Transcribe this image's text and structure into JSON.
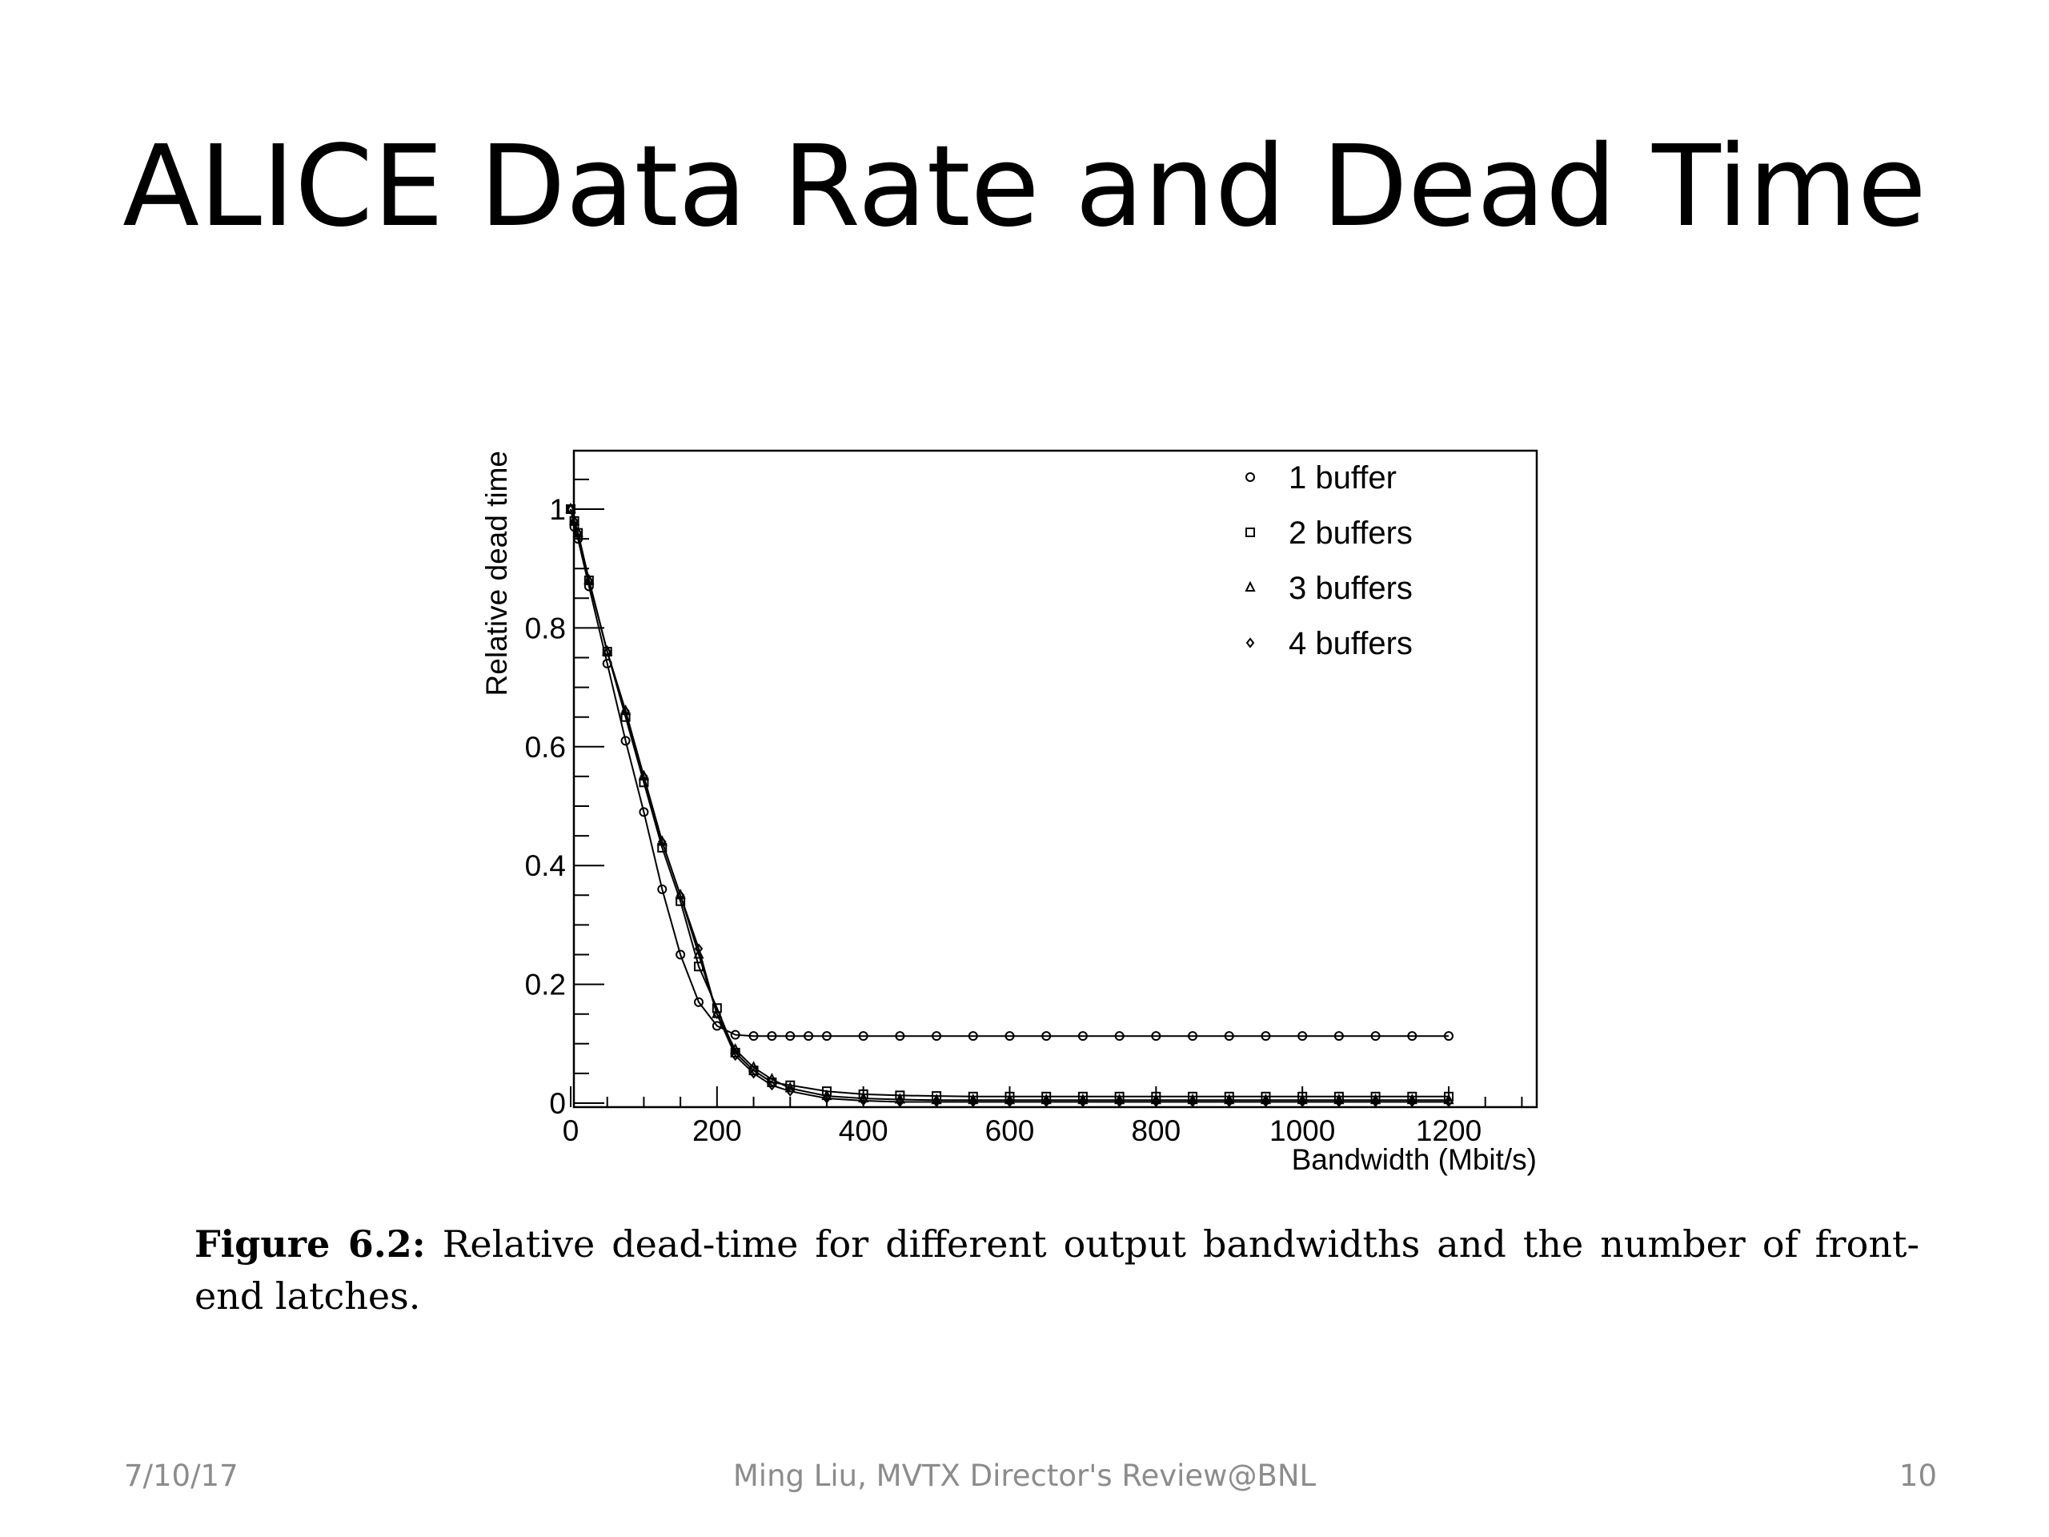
{
  "slide": {
    "title": "ALICE Data Rate and Dead Time"
  },
  "caption": {
    "label": "Figure 6.2:",
    "text": " Relative dead-time for different output bandwidths and the number of front-end latches."
  },
  "footer": {
    "date": "7/10/17",
    "center": "Ming Liu, MVTX Director's Review@BNL",
    "page": "10"
  },
  "chart_data": {
    "type": "line",
    "xlabel": "Bandwidth (Mbit/s)",
    "ylabel": "Relative dead time",
    "xlim": [
      0,
      1320
    ],
    "ylim": [
      0,
      1.1
    ],
    "xticks": [
      0,
      200,
      400,
      600,
      800,
      1000,
      1200
    ],
    "xtick_labels": [
      "0",
      "200",
      "400",
      "600",
      "800",
      "1000",
      "1200"
    ],
    "yticks": [
      0,
      0.2,
      0.4,
      0.6,
      0.8,
      1
    ],
    "ytick_labels": [
      "0",
      "0.2",
      "0.4",
      "0.6",
      "0.8",
      "1"
    ],
    "legend_position": "top-right",
    "grid": false,
    "series": [
      {
        "name": "1 buffer",
        "marker": "circle",
        "x": [
          0,
          5,
          10,
          25,
          50,
          75,
          100,
          125,
          150,
          175,
          200,
          225,
          250,
          275,
          300,
          325,
          350,
          400,
          450,
          500,
          550,
          600,
          650,
          700,
          750,
          800,
          850,
          900,
          950,
          1000,
          1050,
          1100,
          1150,
          1200
        ],
        "y": [
          1.0,
          0.97,
          0.95,
          0.87,
          0.74,
          0.61,
          0.49,
          0.36,
          0.25,
          0.17,
          0.13,
          0.115,
          0.113,
          0.113,
          0.113,
          0.113,
          0.113,
          0.113,
          0.113,
          0.113,
          0.113,
          0.113,
          0.113,
          0.113,
          0.113,
          0.113,
          0.113,
          0.113,
          0.113,
          0.113,
          0.113,
          0.113,
          0.113,
          0.113
        ]
      },
      {
        "name": "2 buffers",
        "marker": "square",
        "x": [
          0,
          5,
          10,
          25,
          50,
          75,
          100,
          125,
          150,
          175,
          200,
          225,
          250,
          275,
          300,
          350,
          400,
          450,
          500,
          550,
          600,
          650,
          700,
          750,
          800,
          850,
          900,
          950,
          1000,
          1050,
          1100,
          1150,
          1200
        ],
        "y": [
          1.0,
          0.98,
          0.96,
          0.88,
          0.76,
          0.65,
          0.54,
          0.43,
          0.34,
          0.23,
          0.16,
          0.085,
          0.055,
          0.035,
          0.03,
          0.02,
          0.015,
          0.013,
          0.012,
          0.011,
          0.011,
          0.011,
          0.011,
          0.011,
          0.011,
          0.011,
          0.011,
          0.011,
          0.011,
          0.011,
          0.011,
          0.011,
          0.011
        ]
      },
      {
        "name": "3 buffers",
        "marker": "triangle",
        "x": [
          0,
          5,
          10,
          25,
          50,
          75,
          100,
          125,
          150,
          175,
          200,
          225,
          250,
          275,
          300,
          350,
          400,
          450,
          500,
          550,
          600,
          650,
          700,
          750,
          800,
          850,
          900,
          950,
          1000,
          1050,
          1100,
          1150,
          1200
        ],
        "y": [
          1.0,
          0.98,
          0.96,
          0.88,
          0.76,
          0.66,
          0.55,
          0.44,
          0.35,
          0.25,
          0.15,
          0.09,
          0.06,
          0.04,
          0.025,
          0.012,
          0.008,
          0.006,
          0.005,
          0.005,
          0.005,
          0.005,
          0.005,
          0.005,
          0.005,
          0.005,
          0.005,
          0.005,
          0.005,
          0.005,
          0.005,
          0.005,
          0.005
        ]
      },
      {
        "name": "4 buffers",
        "marker": "diamond",
        "x": [
          0,
          5,
          10,
          25,
          50,
          75,
          100,
          125,
          150,
          175,
          200,
          225,
          250,
          275,
          300,
          350,
          400,
          450,
          500,
          550,
          600,
          650,
          700,
          750,
          800,
          850,
          900,
          950,
          1000,
          1050,
          1100,
          1150,
          1200
        ],
        "y": [
          1.0,
          0.98,
          0.96,
          0.88,
          0.76,
          0.66,
          0.55,
          0.44,
          0.35,
          0.26,
          0.15,
          0.08,
          0.05,
          0.03,
          0.02,
          0.008,
          0.004,
          0.002,
          0.002,
          0.002,
          0.002,
          0.002,
          0.002,
          0.002,
          0.002,
          0.002,
          0.002,
          0.002,
          0.002,
          0.002,
          0.002,
          0.002,
          0.002
        ]
      }
    ]
  }
}
